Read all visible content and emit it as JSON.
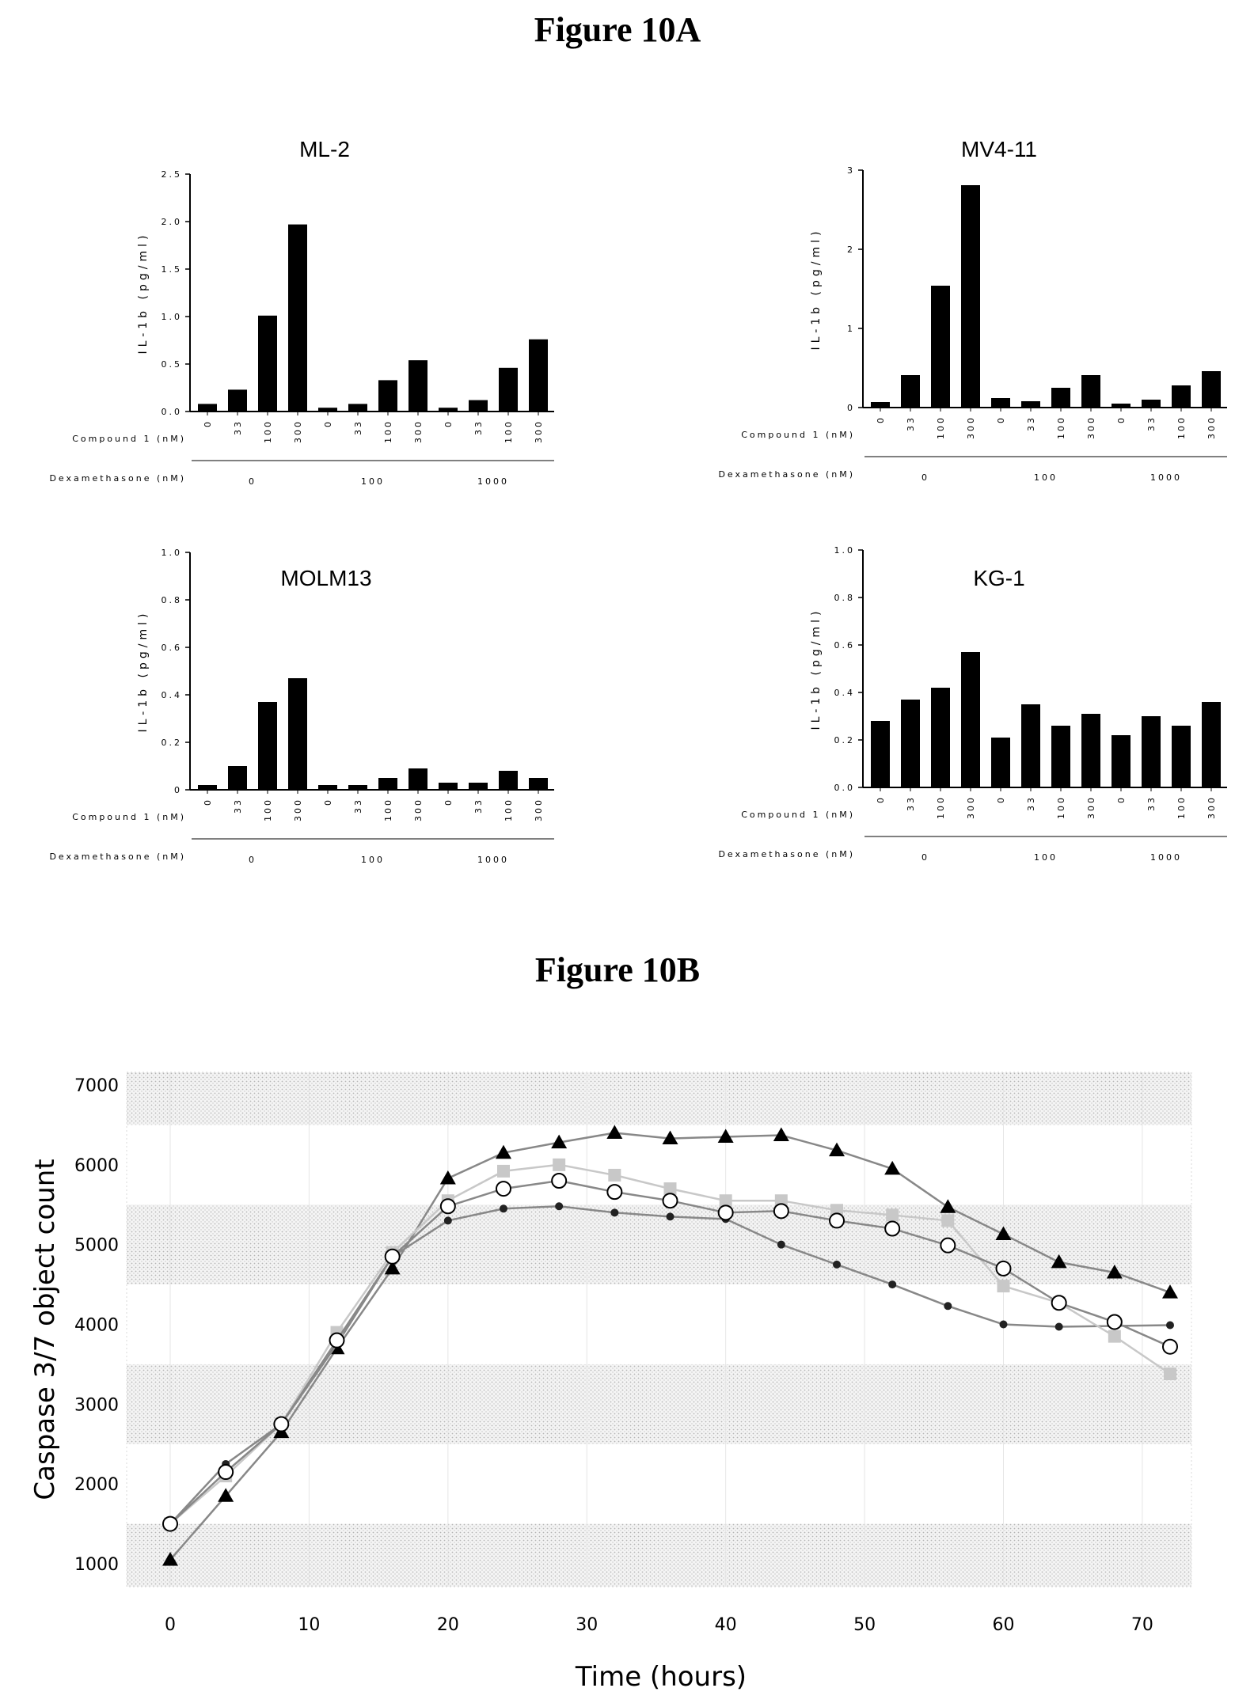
{
  "figure_a_title": "Figure 10A",
  "figure_b_title": "Figure 10B",
  "chart_data": [
    {
      "type": "bar",
      "title": "ML-2",
      "ylabel": "IL-1b (pg/ml)",
      "ylim": [
        0,
        2.5
      ],
      "yticks": [
        "0.0",
        "0.5",
        "1.0",
        "1.5",
        "2.0",
        "2.5"
      ],
      "row1_label": "Compound 1 (nM)",
      "row2_label": "Dexamethasone (nM)",
      "categories": [
        "0",
        "33",
        "100",
        "300",
        "0",
        "33",
        "100",
        "300",
        "0",
        "33",
        "100",
        "300"
      ],
      "groups": [
        "0",
        "100",
        "1000"
      ],
      "values": [
        0.08,
        0.23,
        1.01,
        1.97,
        0.04,
        0.08,
        0.33,
        0.54,
        0.04,
        0.12,
        0.46,
        0.76
      ]
    },
    {
      "type": "bar",
      "title": "MV4-11",
      "ylabel": "IL-1b (pg/ml)",
      "ylim": [
        0,
        3
      ],
      "yticks": [
        "0",
        "1",
        "2",
        "3"
      ],
      "row1_label": "Compound 1 (nM)",
      "row2_label": "Dexamethasone (nM)",
      "categories": [
        "0",
        "33",
        "100",
        "300",
        "0",
        "33",
        "100",
        "300",
        "0",
        "33",
        "100",
        "300"
      ],
      "groups": [
        "0",
        "100",
        "1000"
      ],
      "values": [
        0.07,
        0.41,
        1.54,
        2.81,
        0.12,
        0.08,
        0.25,
        0.41,
        0.05,
        0.1,
        0.28,
        0.46
      ]
    },
    {
      "type": "bar",
      "title": "MOLM13",
      "ylabel": "IL-1b (pg/ml)",
      "ylim": [
        0,
        1.0
      ],
      "yticks": [
        "0",
        "0.2",
        "0.4",
        "0.6",
        "0.8",
        "1.0"
      ],
      "row1_label": "Compound 1 (nM)",
      "row2_label": "Dexamethasone (nM)",
      "categories": [
        "0",
        "33",
        "100",
        "300",
        "0",
        "33",
        "100",
        "300",
        "0",
        "33",
        "100",
        "300"
      ],
      "groups": [
        "0",
        "100",
        "1000"
      ],
      "values": [
        0.02,
        0.1,
        0.37,
        0.47,
        0.02,
        0.02,
        0.05,
        0.09,
        0.03,
        0.03,
        0.08,
        0.05
      ]
    },
    {
      "type": "bar",
      "title": "KG-1",
      "ylabel": "IL-1b (pg/ml)",
      "ylim": [
        0,
        1.0
      ],
      "yticks": [
        "0.0",
        "0.2",
        "0.4",
        "0.6",
        "0.8",
        "1.0"
      ],
      "row1_label": "Compound 1 (nM)",
      "row2_label": "Dexamethasone (nM)",
      "categories": [
        "0",
        "33",
        "100",
        "300",
        "0",
        "33",
        "100",
        "300",
        "0",
        "33",
        "100",
        "300"
      ],
      "groups": [
        "0",
        "100",
        "1000"
      ],
      "values": [
        0.28,
        0.37,
        0.42,
        0.57,
        0.21,
        0.35,
        0.26,
        0.31,
        0.22,
        0.3,
        0.26,
        0.36
      ]
    },
    {
      "type": "line",
      "xlabel": "Time (hours)",
      "ylabel": "Caspase 3/7 object count",
      "xlim": [
        0,
        72
      ],
      "ylim": [
        1000,
        7000
      ],
      "xticks": [
        "0",
        "10",
        "20",
        "30",
        "40",
        "50",
        "60",
        "70"
      ],
      "yticks": [
        "1000",
        "2000",
        "3000",
        "4000",
        "5000",
        "6000",
        "7000"
      ],
      "x": [
        0,
        4,
        8,
        12,
        16,
        20,
        24,
        28,
        32,
        36,
        40,
        44,
        48,
        52,
        56,
        60,
        64,
        68,
        72
      ],
      "series": [
        {
          "marker": "triangle",
          "color": "#888888",
          "values": [
            1050,
            1850,
            2650,
            3700,
            4700,
            5830,
            6150,
            6280,
            6400,
            6330,
            6350,
            6370,
            6180,
            5950,
            5470,
            5130,
            4780,
            4650,
            4400
          ]
        },
        {
          "marker": "diamond",
          "color": "#888888",
          "values": [
            1500,
            2250,
            2750,
            3750,
            4850,
            5300,
            5450,
            5480,
            5400,
            5350,
            5320,
            5000,
            4750,
            4500,
            4230,
            4000,
            3970,
            3980,
            3990
          ]
        },
        {
          "marker": "square",
          "color": "#c8c8c8",
          "values": [
            1500,
            2100,
            2750,
            3900,
            4900,
            5550,
            5920,
            6000,
            5870,
            5700,
            5550,
            5550,
            5430,
            5370,
            5300,
            4480,
            4270,
            3850,
            3380
          ]
        },
        {
          "marker": "circle",
          "color": "#888888",
          "values": [
            1500,
            2150,
            2750,
            3800,
            4850,
            5480,
            5700,
            5800,
            5660,
            5550,
            5400,
            5420,
            5300,
            5200,
            4990,
            4700,
            4270,
            4030,
            3720
          ]
        }
      ]
    }
  ]
}
